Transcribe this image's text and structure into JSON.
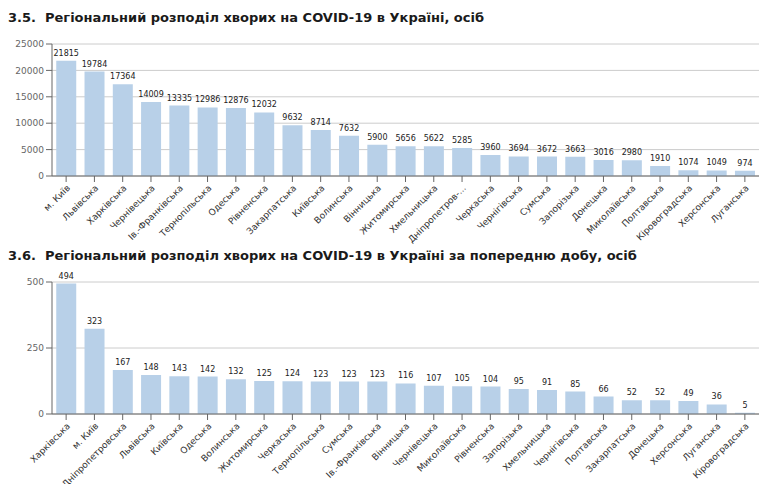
{
  "chart_data": [
    {
      "type": "bar",
      "title": "3.5.  Регіональний розподіл хворих на COVID-19 в Україні, осіб",
      "categories": [
        "м. Київ",
        "Львівська",
        "Харківська",
        "Чернівецька",
        "Ів.-Франківська",
        "Тернопільська",
        "Одеська",
        "Рівненська",
        "Закарпатська",
        "Київська",
        "Волинська",
        "Вінницька",
        "Житомирська",
        "Хмельницька",
        "Дніпропетров-...",
        "Черкаська",
        "Чернігівська",
        "Сумська",
        "Запорізька",
        "Донецька",
        "Миколаївська",
        "Полтавська",
        "Кіровоградська",
        "Херсонська",
        "Луганська"
      ],
      "values": [
        21815,
        19784,
        17364,
        14009,
        13335,
        12986,
        12876,
        12032,
        9632,
        8714,
        7632,
        5900,
        5656,
        5622,
        5285,
        3960,
        3694,
        3672,
        3663,
        3016,
        2980,
        1910,
        1074,
        1049,
        974
      ],
      "color": "#b8d0e8",
      "ylim": [
        0,
        25000
      ],
      "yticks": [
        0,
        5000,
        10000,
        15000,
        20000,
        25000
      ],
      "grid": true,
      "data_labels": true
    },
    {
      "type": "bar",
      "title": "3.6.  Регіональний розподіл хворих на COVID-19 в Україні за попередню добу, осіб",
      "categories": [
        "Харківська",
        "м. Київ",
        "Дніпропетровська",
        "Львівська",
        "Київська",
        "Одеська",
        "Волинська",
        "Житомирська",
        "Черкаська",
        "Тернопільська",
        "Сумська",
        "Ів.-Франківська",
        "Вінницька",
        "Чернівецька",
        "Миколаївська",
        "Рівненська",
        "Запорізька",
        "Хмельницька",
        "Чернігівська",
        "Полтавська",
        "Закарпатська",
        "Донецька",
        "Херсонська",
        "Луганська",
        "Кіровоградська"
      ],
      "values": [
        494,
        323,
        167,
        148,
        143,
        142,
        132,
        125,
        124,
        123,
        123,
        123,
        116,
        107,
        105,
        104,
        95,
        91,
        85,
        66,
        52,
        52,
        49,
        36,
        5
      ],
      "color": "#b8d0e8",
      "ylim": [
        0,
        500
      ],
      "yticks": [
        0,
        250,
        500
      ],
      "grid": true,
      "data_labels": true
    }
  ]
}
